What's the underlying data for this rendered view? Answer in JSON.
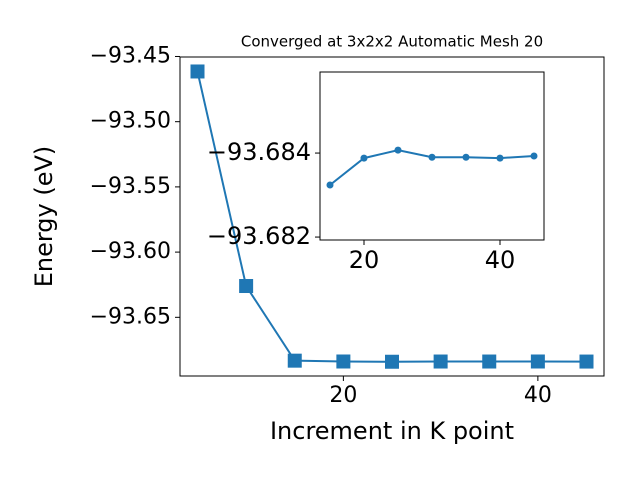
{
  "chart_data": [
    {
      "type": "line",
      "title": "Converged at 3x2x2 Automatic Mesh 20",
      "xlabel": "Increment in K point",
      "ylabel": "Energy (eV)",
      "x": [
        5,
        10,
        15,
        20,
        25,
        30,
        35,
        40,
        45
      ],
      "series": [
        {
          "color": "#1f77b4",
          "marker": "square",
          "values": [
            -93.4615,
            -93.626,
            -93.68324,
            -93.68388,
            -93.68407,
            -93.6839,
            -93.6839,
            -93.68388,
            -93.68393
          ]
        }
      ],
      "xlim": [
        3.2,
        46.8
      ],
      "xticks": [
        20,
        40
      ],
      "ylim": [
        -93.695,
        -93.4504
      ],
      "yticks": [
        {
          "value": -93.45,
          "label": "−93.45"
        },
        {
          "value": -93.5,
          "label": "−93.50"
        },
        {
          "value": -93.55,
          "label": "−93.55"
        },
        {
          "value": -93.6,
          "label": "−93.60"
        },
        {
          "value": -93.65,
          "label": "−93.65"
        }
      ]
    },
    {
      "type": "line",
      "x": [
        15,
        20,
        25,
        30,
        35,
        40,
        45
      ],
      "series": [
        {
          "color": "#1f77b4",
          "marker": "circle",
          "values": [
            -93.68324,
            -93.68388,
            -93.68407,
            -93.6839,
            -93.6839,
            -93.68388,
            -93.68393
          ]
        }
      ],
      "xlim": [
        13.53,
        46.47
      ],
      "xticks": [
        20,
        40
      ],
      "ylim": [
        -93.68593,
        -93.68193
      ],
      "y_inverted": true,
      "yticks": [
        {
          "value": -93.684,
          "label": "−93.684"
        },
        {
          "value": -93.682,
          "label": "−93.682"
        }
      ]
    }
  ]
}
